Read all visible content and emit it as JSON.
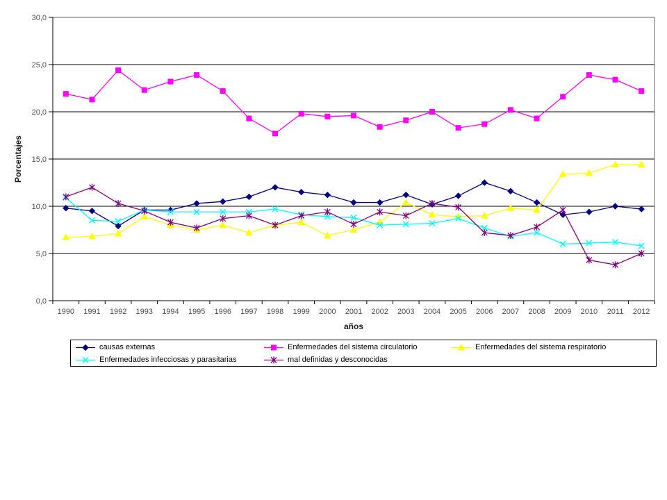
{
  "page": {
    "background": "#ffffff"
  },
  "chart_data": {
    "type": "line",
    "title": "",
    "xlabel": "años",
    "ylabel": "Porcentajes",
    "ylim": [
      0,
      30
    ],
    "y_tick_step": 5,
    "y_tick_labels": [
      "0,0",
      "5,0",
      "10,0",
      "15,0",
      "20,0",
      "25,0",
      "30,0"
    ],
    "grid": "horizontal-black",
    "legend_position": "bottom-box",
    "categories": [
      "1990",
      "1991",
      "1992",
      "1993",
      "1994",
      "1995",
      "1996",
      "1997",
      "1998",
      "1999",
      "2000",
      "2001",
      "2002",
      "2003",
      "2004",
      "2005",
      "2006",
      "2007",
      "2008",
      "2009",
      "2010",
      "2011",
      "2012"
    ],
    "series": [
      {
        "name": "causas externas",
        "color": "#000080",
        "marker": "diamond",
        "values": [
          9.8,
          9.5,
          7.9,
          9.6,
          9.6,
          10.3,
          10.5,
          11.0,
          12.0,
          11.5,
          11.2,
          10.4,
          10.4,
          11.2,
          10.2,
          11.1,
          12.5,
          11.6,
          10.4,
          9.1,
          9.4,
          10.0,
          9.7
        ]
      },
      {
        "name": "Enfermedades del sistema circulatorio",
        "color": "#FF00FF",
        "marker": "square",
        "values": [
          21.9,
          21.3,
          24.4,
          22.3,
          23.2,
          23.9,
          22.2,
          19.3,
          17.7,
          19.8,
          19.5,
          19.6,
          18.4,
          19.1,
          20.0,
          18.3,
          18.7,
          20.2,
          19.3,
          21.6,
          23.9,
          23.4,
          22.2
        ]
      },
      {
        "name": "Enfermedades del sistema respiratorio",
        "color": "#FFFF00",
        "marker": "triangle",
        "values": [
          6.7,
          6.8,
          7.1,
          8.9,
          8.0,
          7.5,
          8.0,
          7.2,
          8.0,
          8.3,
          6.9,
          7.5,
          8.3,
          10.4,
          9.1,
          8.9,
          9.0,
          9.8,
          9.6,
          13.4,
          13.5,
          14.4,
          14.4
        ]
      },
      {
        "name": "Enfermedades infecciosas y parasitarias",
        "color": "#00FFFF",
        "marker": "x",
        "values": [
          10.9,
          8.5,
          8.4,
          9.6,
          9.4,
          9.4,
          9.4,
          9.4,
          9.7,
          9.1,
          8.9,
          8.8,
          8.0,
          8.1,
          8.2,
          8.7,
          7.7,
          6.8,
          7.2,
          6.0,
          6.1,
          6.2,
          5.8
        ]
      },
      {
        "name": "mal definidas y desconocidas",
        "color": "#800080",
        "marker": "star",
        "values": [
          11.0,
          12.0,
          10.3,
          9.5,
          8.3,
          7.7,
          8.7,
          9.0,
          8.0,
          9.0,
          9.4,
          8.1,
          9.4,
          9.0,
          10.3,
          9.9,
          7.2,
          6.9,
          7.8,
          9.6,
          4.3,
          3.8,
          5.0
        ]
      }
    ],
    "colors": {
      "gridline": "#000000",
      "plot_border": "#808080",
      "axis": "#000000",
      "tick_label": "#4d4d4d"
    }
  }
}
